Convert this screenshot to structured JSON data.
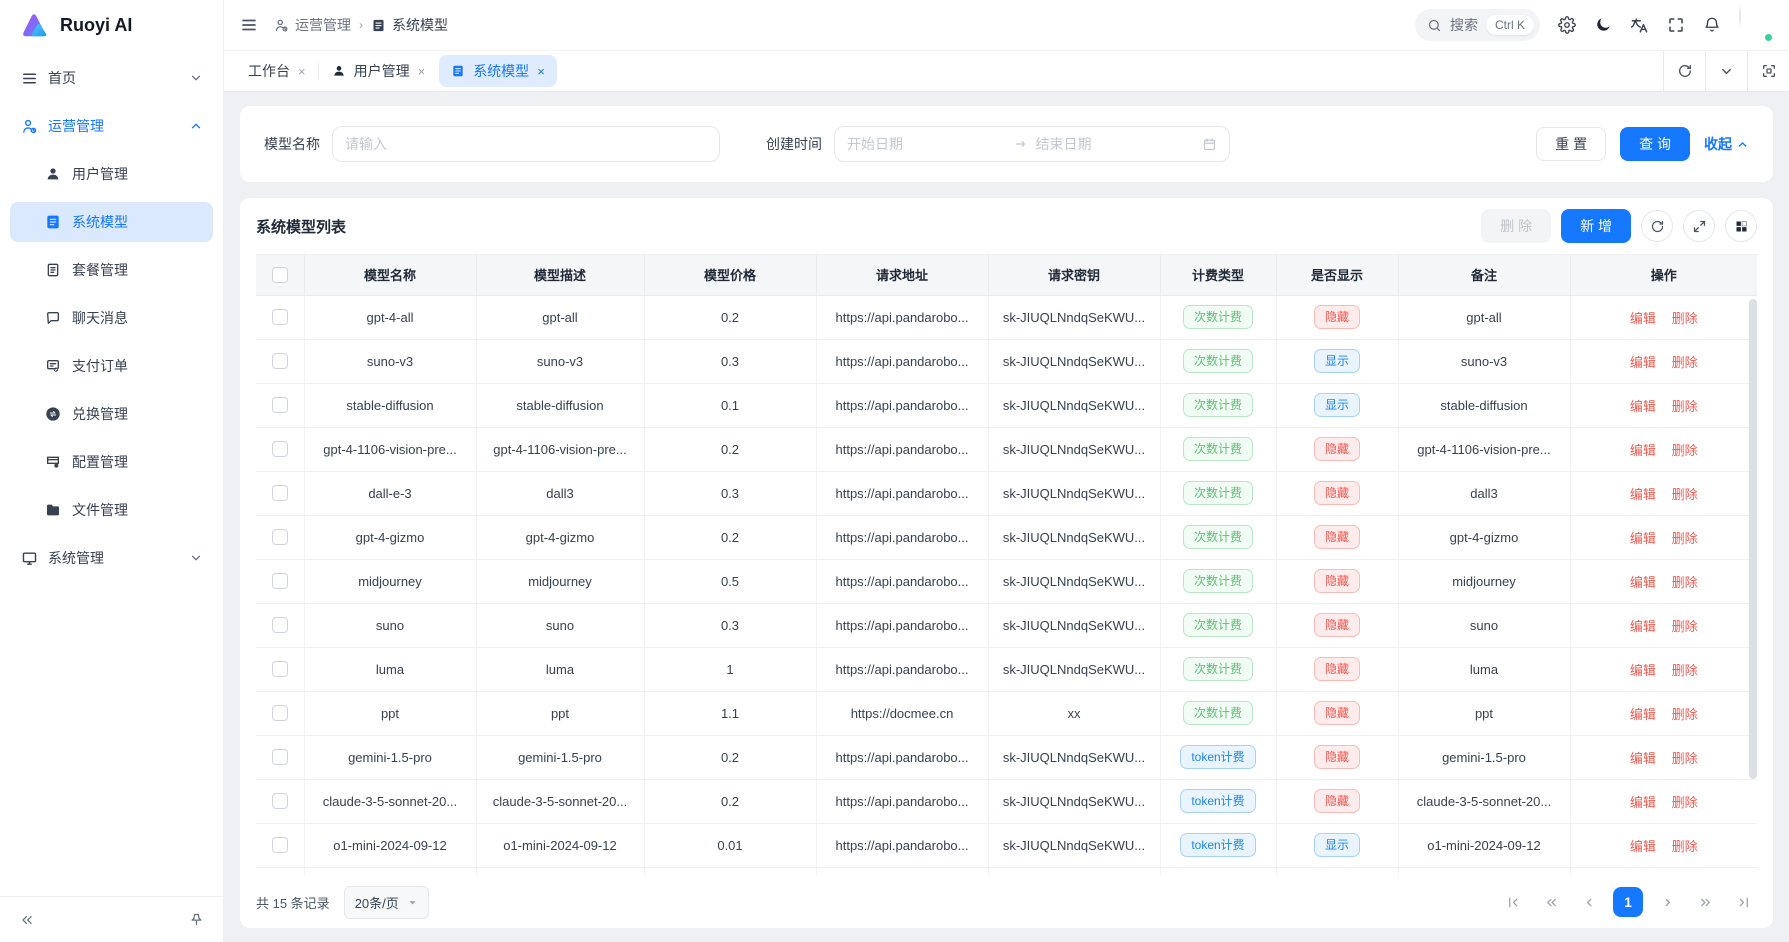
{
  "brand": {
    "name": "Ruoyi AI"
  },
  "sidebar": {
    "home": {
      "label": "首页"
    },
    "ops": {
      "label": "运营管理"
    },
    "ops_children": [
      {
        "label": "用户管理"
      },
      {
        "label": "系统模型",
        "active": true
      },
      {
        "label": "套餐管理"
      },
      {
        "label": "聊天消息"
      },
      {
        "label": "支付订单"
      },
      {
        "label": "兑换管理"
      },
      {
        "label": "配置管理"
      },
      {
        "label": "文件管理"
      }
    ],
    "system": {
      "label": "系统管理"
    }
  },
  "topbar": {
    "breadcrumb": {
      "parent": "运营管理",
      "current": "系统模型"
    },
    "search": {
      "placeholder": "搜索",
      "shortcut": "Ctrl K"
    }
  },
  "tabs": [
    {
      "label": "工作台"
    },
    {
      "label": "用户管理"
    },
    {
      "label": "系统模型"
    }
  ],
  "filter": {
    "name_label": "模型名称",
    "name_placeholder": "请输入",
    "time_label": "创建时间",
    "start_placeholder": "开始日期",
    "end_placeholder": "结束日期",
    "reset_label": "重 置",
    "search_label": "查 询",
    "collapse_label": "收起"
  },
  "table": {
    "title": "系统模型列表",
    "delete_label": "删 除",
    "add_label": "新 增",
    "columns": [
      "模型名称",
      "模型描述",
      "模型价格",
      "请求地址",
      "请求密钥",
      "计费类型",
      "是否显示",
      "备注",
      "操作"
    ],
    "edit_label": "编辑",
    "del_label": "删除",
    "rows": [
      {
        "name": "gpt-4-all",
        "desc": "gpt-all",
        "price": "0.2",
        "url": "https://api.pandarobo...",
        "key": "sk-JIUQLNndqSeKWU...",
        "billing": "次数计费",
        "billing_color": "green",
        "visible": "隐藏",
        "visible_color": "red",
        "remark": "gpt-all"
      },
      {
        "name": "suno-v3",
        "desc": "suno-v3",
        "price": "0.3",
        "url": "https://api.pandarobo...",
        "key": "sk-JIUQLNndqSeKWU...",
        "billing": "次数计费",
        "billing_color": "green",
        "visible": "显示",
        "visible_color": "blue",
        "remark": "suno-v3"
      },
      {
        "name": "stable-diffusion",
        "desc": "stable-diffusion",
        "price": "0.1",
        "url": "https://api.pandarobo...",
        "key": "sk-JIUQLNndqSeKWU...",
        "billing": "次数计费",
        "billing_color": "green",
        "visible": "显示",
        "visible_color": "blue",
        "remark": "stable-diffusion"
      },
      {
        "name": "gpt-4-1106-vision-pre...",
        "desc": "gpt-4-1106-vision-pre...",
        "price": "0.2",
        "url": "https://api.pandarobo...",
        "key": "sk-JIUQLNndqSeKWU...",
        "billing": "次数计费",
        "billing_color": "green",
        "visible": "隐藏",
        "visible_color": "red",
        "remark": "gpt-4-1106-vision-pre..."
      },
      {
        "name": "dall-e-3",
        "desc": "dall3",
        "price": "0.3",
        "url": "https://api.pandarobo...",
        "key": "sk-JIUQLNndqSeKWU...",
        "billing": "次数计费",
        "billing_color": "green",
        "visible": "隐藏",
        "visible_color": "red",
        "remark": "dall3"
      },
      {
        "name": "gpt-4-gizmo",
        "desc": "gpt-4-gizmo",
        "price": "0.2",
        "url": "https://api.pandarobo...",
        "key": "sk-JIUQLNndqSeKWU...",
        "billing": "次数计费",
        "billing_color": "green",
        "visible": "隐藏",
        "visible_color": "red",
        "remark": "gpt-4-gizmo"
      },
      {
        "name": "midjourney",
        "desc": "midjourney",
        "price": "0.5",
        "url": "https://api.pandarobo...",
        "key": "sk-JIUQLNndqSeKWU...",
        "billing": "次数计费",
        "billing_color": "green",
        "visible": "隐藏",
        "visible_color": "red",
        "remark": "midjourney"
      },
      {
        "name": "suno",
        "desc": "suno",
        "price": "0.3",
        "url": "https://api.pandarobo...",
        "key": "sk-JIUQLNndqSeKWU...",
        "billing": "次数计费",
        "billing_color": "green",
        "visible": "隐藏",
        "visible_color": "red",
        "remark": "suno"
      },
      {
        "name": "luma",
        "desc": "luma",
        "price": "1",
        "url": "https://api.pandarobo...",
        "key": "sk-JIUQLNndqSeKWU...",
        "billing": "次数计费",
        "billing_color": "green",
        "visible": "隐藏",
        "visible_color": "red",
        "remark": "luma"
      },
      {
        "name": "ppt",
        "desc": "ppt",
        "price": "1.1",
        "url": "https://docmee.cn",
        "key": "xx",
        "billing": "次数计费",
        "billing_color": "green",
        "visible": "隐藏",
        "visible_color": "red",
        "remark": "ppt"
      },
      {
        "name": "gemini-1.5-pro",
        "desc": "gemini-1.5-pro",
        "price": "0.2",
        "url": "https://api.pandarobo...",
        "key": "sk-JIUQLNndqSeKWU...",
        "billing": "token计费",
        "billing_color": "blue",
        "visible": "隐藏",
        "visible_color": "red",
        "remark": "gemini-1.5-pro"
      },
      {
        "name": "claude-3-5-sonnet-20...",
        "desc": "claude-3-5-sonnet-20...",
        "price": "0.2",
        "url": "https://api.pandarobo...",
        "key": "sk-JIUQLNndqSeKWU...",
        "billing": "token计费",
        "billing_color": "blue",
        "visible": "隐藏",
        "visible_color": "red",
        "remark": "claude-3-5-sonnet-20..."
      },
      {
        "name": "o1-mini-2024-09-12",
        "desc": "o1-mini-2024-09-12",
        "price": "0.01",
        "url": "https://api.pandarobo...",
        "key": "sk-JIUQLNndqSeKWU...",
        "billing": "token计费",
        "billing_color": "blue",
        "visible": "显示",
        "visible_color": "blue",
        "remark": "o1-mini-2024-09-12"
      }
    ]
  },
  "pagination": {
    "total_text": "共 15 条记录",
    "page_size": "20条/页",
    "current_page": "1"
  },
  "colors": {
    "primary": "#1677ff",
    "badge_green": "#5ec075",
    "badge_red": "#ee5951",
    "badge_blue": "#1c86f2",
    "action_link": "#ee5b51",
    "active_tab_bg": "#dfecff",
    "sidebar_active_bg": "#dbe9ff"
  }
}
